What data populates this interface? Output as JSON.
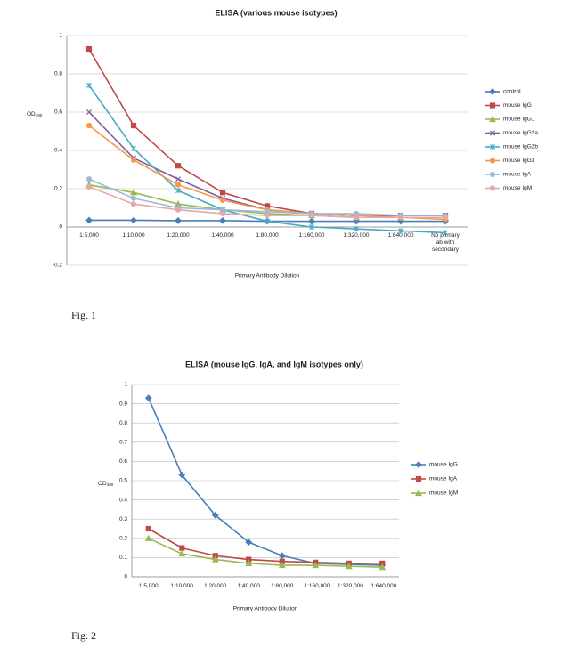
{
  "chart_data": [
    {
      "type": "line",
      "title": "ELISA (various mouse isotypes)",
      "ylabel": "OD",
      "ylabel_subscript": "490",
      "xlabel": "Primary Antibody  Dilution",
      "categories": [
        "1:5,000",
        "1:10,000",
        "1:20,000",
        "1:40,000",
        "1:80,000",
        "1:160,000",
        "1:320,000",
        "1:640,000",
        "No primary ab with secondary"
      ],
      "ylim": [
        -0.2,
        1
      ],
      "yticks": [
        -0.2,
        0,
        0.2,
        0.4,
        0.6,
        0.8,
        1
      ],
      "grid": true,
      "legend": "right",
      "series": [
        {
          "name": "control",
          "color": "#4a7ebb",
          "marker": "diamond",
          "values": [
            0.035,
            0.035,
            0.033,
            0.033,
            0.03,
            0.03,
            0.03,
            0.03,
            0.03
          ]
        },
        {
          "name": "mouse IgG",
          "color": "#be4b48",
          "marker": "square",
          "values": [
            0.93,
            0.53,
            0.32,
            0.18,
            0.11,
            0.07,
            0.06,
            0.06,
            0.06
          ]
        },
        {
          "name": "mouse IgG1",
          "color": "#98b954",
          "marker": "triangle",
          "values": [
            0.22,
            0.18,
            0.12,
            0.09,
            0.07,
            0.06,
            0.05,
            0.05,
            0.05
          ]
        },
        {
          "name": "mouse IgG2a",
          "color": "#7d60a0",
          "marker": "x",
          "values": [
            0.6,
            0.36,
            0.25,
            0.15,
            0.09,
            0.07,
            0.06,
            0.06,
            0.06
          ]
        },
        {
          "name": "mouse IgG2b",
          "color": "#46aac5",
          "marker": "star",
          "values": [
            0.74,
            0.41,
            0.19,
            0.09,
            0.03,
            0.0,
            -0.01,
            -0.02,
            -0.03
          ]
        },
        {
          "name": "mouse IgG3",
          "color": "#f79646",
          "marker": "circle",
          "values": [
            0.53,
            0.35,
            0.22,
            0.14,
            0.09,
            0.07,
            0.06,
            0.05,
            0.04
          ]
        },
        {
          "name": "mouse IgA",
          "color": "#9bbbd9",
          "marker": "circle",
          "values": [
            0.25,
            0.15,
            0.1,
            0.09,
            0.08,
            0.07,
            0.07,
            0.06,
            0.06
          ]
        },
        {
          "name": "mouse IgM",
          "color": "#e6a7a7",
          "marker": "circle",
          "values": [
            0.21,
            0.12,
            0.09,
            0.07,
            0.06,
            0.06,
            0.05,
            0.05,
            0.05
          ]
        }
      ]
    },
    {
      "type": "line",
      "title": "ELISA (mouse IgG, IgA, and IgM isotypes only)",
      "ylabel": "OD",
      "ylabel_subscript": "490",
      "xlabel": "Primary Antibody  Dilution",
      "categories": [
        "1:5,000",
        "1:10,000",
        "1:20,000",
        "1:40,000",
        "1:80,000",
        "1:160,000",
        "1:320,000",
        "1:640,000"
      ],
      "ylim": [
        0,
        1
      ],
      "yticks": [
        0,
        0.1,
        0.2,
        0.3,
        0.4,
        0.5,
        0.6,
        0.7,
        0.8,
        0.9,
        1
      ],
      "grid": true,
      "legend": "right",
      "series": [
        {
          "name": "mouse IgG",
          "color": "#4a7ebb",
          "marker": "diamond",
          "values": [
            0.93,
            0.53,
            0.32,
            0.18,
            0.11,
            0.07,
            0.065,
            0.06
          ]
        },
        {
          "name": "mouse IgA",
          "color": "#be4b48",
          "marker": "square",
          "values": [
            0.25,
            0.15,
            0.11,
            0.09,
            0.08,
            0.075,
            0.07,
            0.07
          ]
        },
        {
          "name": "mouse IgM",
          "color": "#98b954",
          "marker": "triangle",
          "values": [
            0.2,
            0.12,
            0.09,
            0.07,
            0.06,
            0.06,
            0.055,
            0.05
          ]
        }
      ]
    }
  ],
  "figures": [
    {
      "caption": "Fig. 1"
    },
    {
      "caption": "Fig. 2"
    }
  ]
}
